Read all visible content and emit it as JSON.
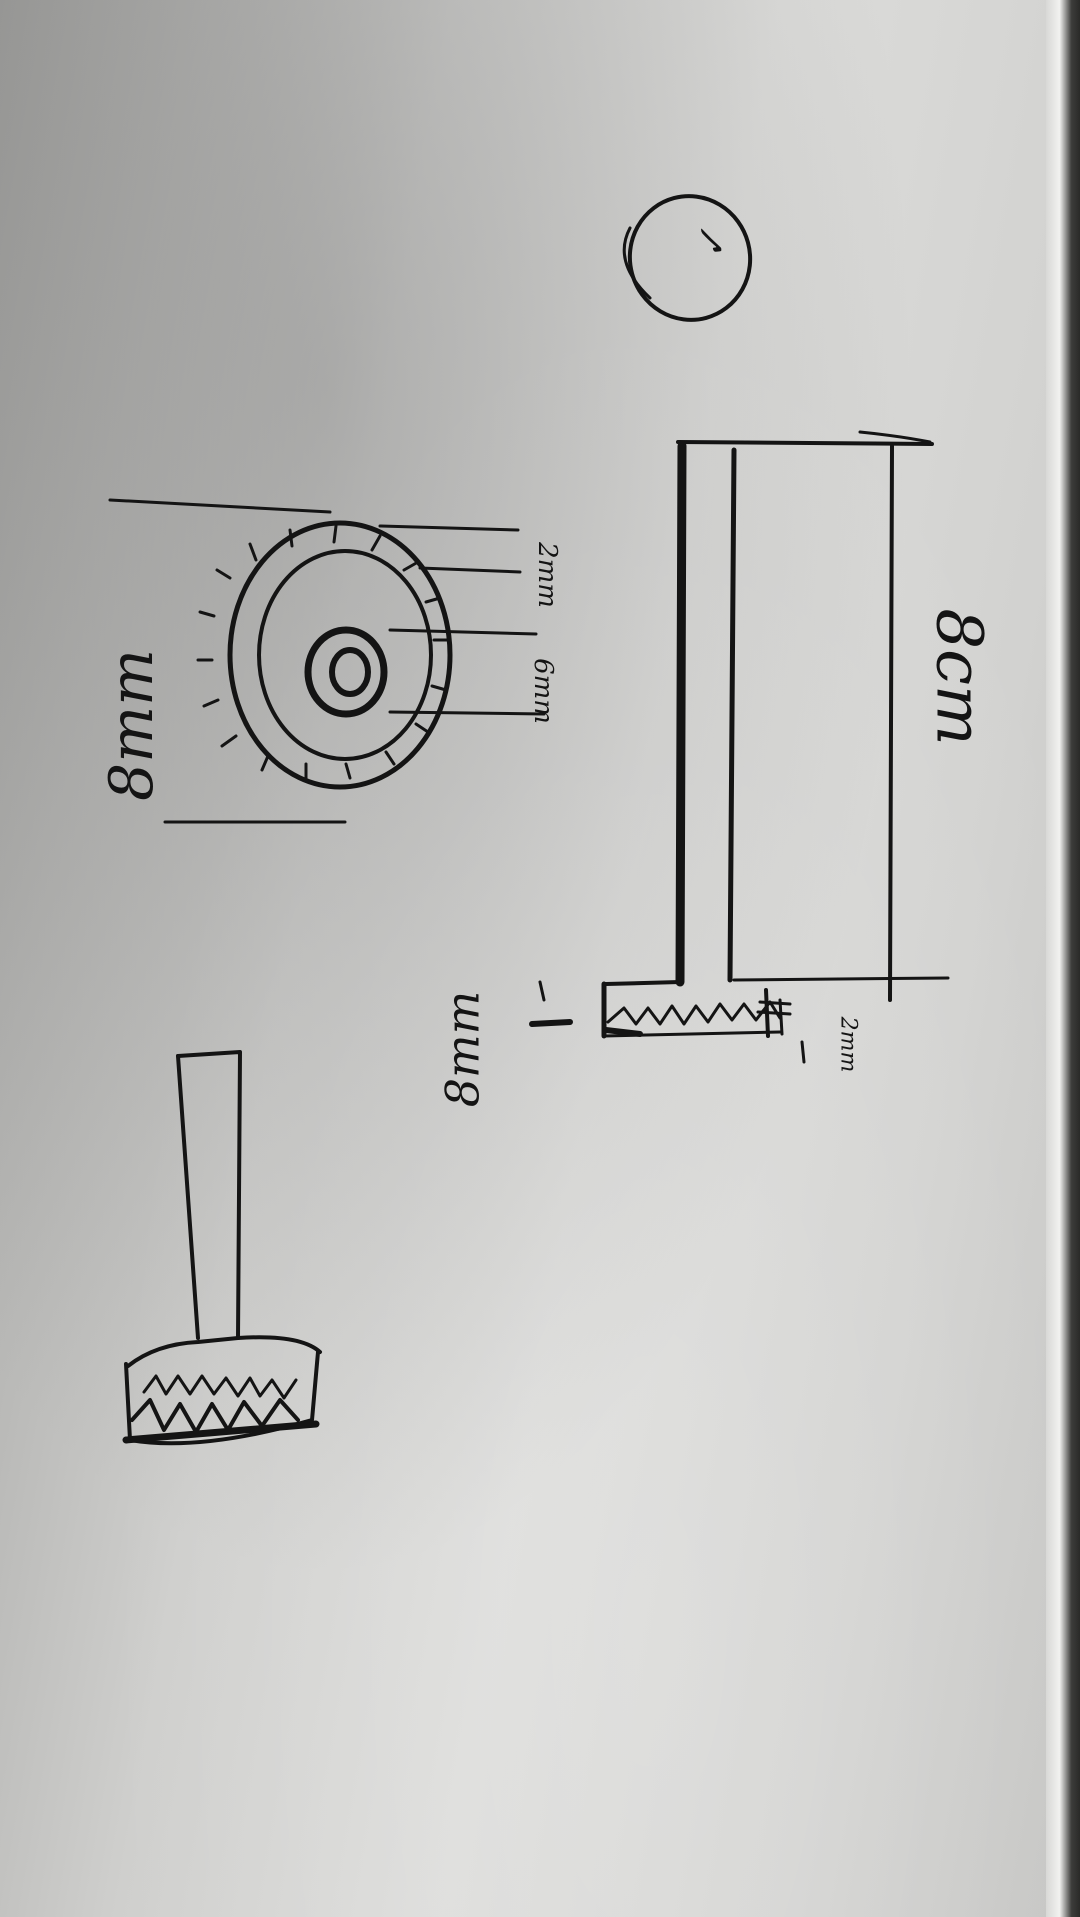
{
  "labels": {
    "badge_mark": "✓",
    "length": "8cm",
    "outer_diameter": "8mm",
    "ring_width": "2mm",
    "bore_diameter": "6mm",
    "head_thickness": "2mm",
    "head_diameter": "8mm"
  },
  "colors": {
    "ink": "#141414",
    "paper": "#d6d6d4"
  }
}
